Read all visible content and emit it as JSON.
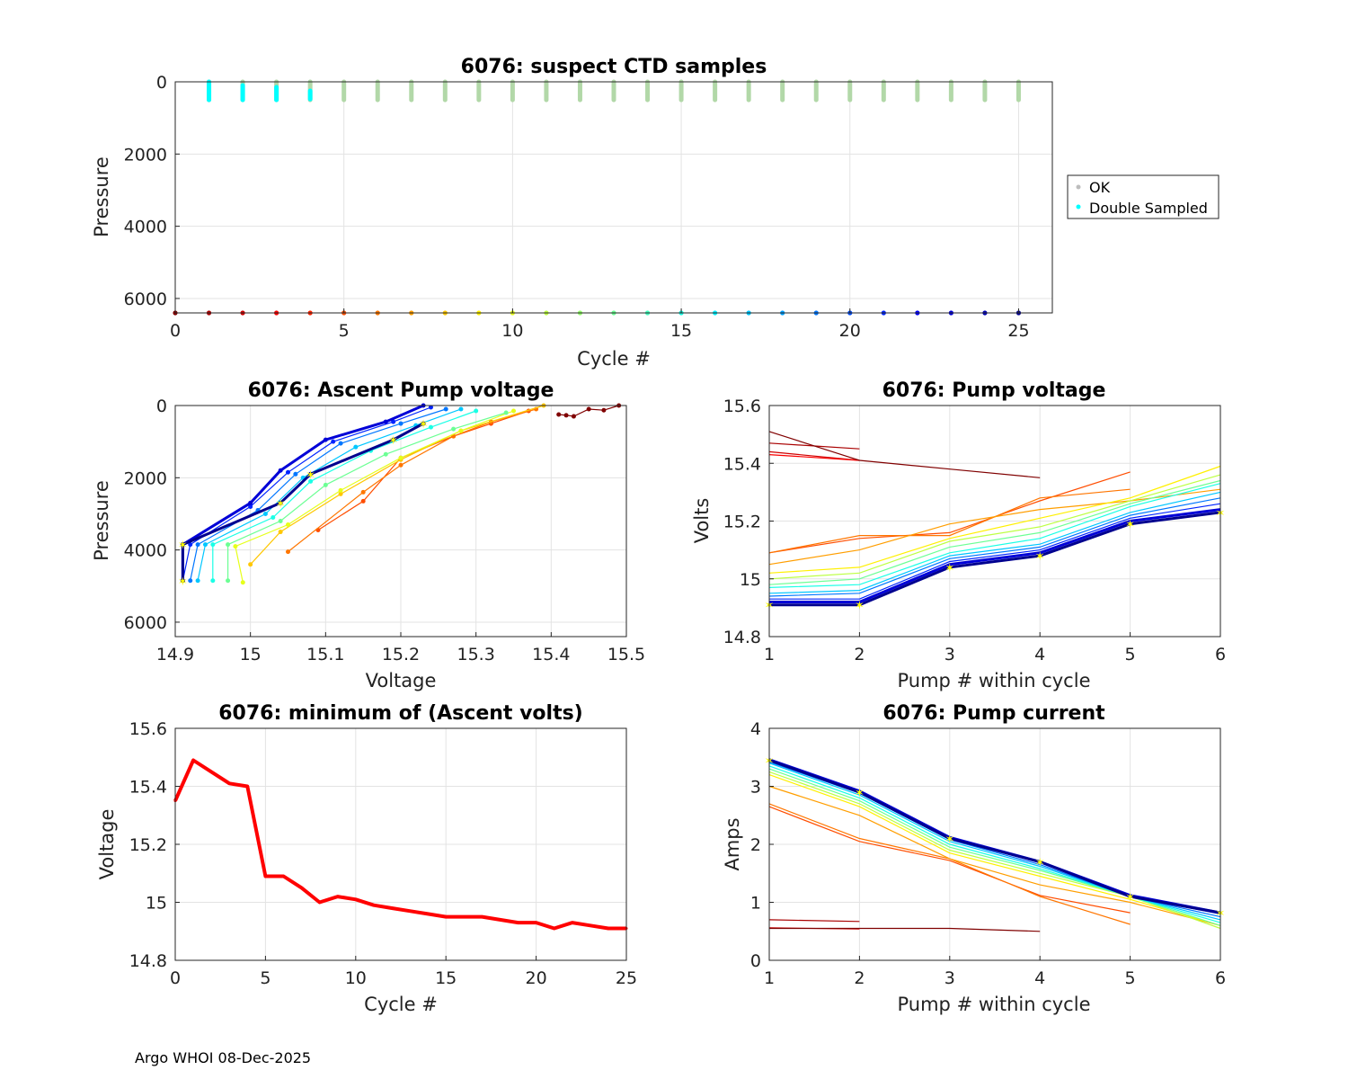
{
  "footer": "Argo WHOI 08-Dec-2025",
  "colors": {
    "cycle_colormap": [
      "#00008f",
      "#0000ff",
      "#0080ff",
      "#00ffff",
      "#80ff80",
      "#ffff00",
      "#ff8000",
      "#ff0000",
      "#800000"
    ],
    "ok": "#b2d8a8",
    "double_sampled": "#00ffff",
    "min_volts": "#ff0000",
    "marker": "#ffff00"
  },
  "chart_data": [
    {
      "id": "ctd",
      "type": "scatter",
      "title": "6076: suspect CTD samples",
      "xlabel": "Cycle #",
      "ylabel": "Pressure",
      "xlim": [
        0,
        26
      ],
      "ylim": [
        0,
        6400
      ],
      "y_reversed": true,
      "xticks": [
        "0",
        "5",
        "10",
        "15",
        "20",
        "25"
      ],
      "yticks": [
        "0",
        "2000",
        "4000",
        "6000"
      ],
      "legend": [
        "OK",
        "Double Sampled"
      ],
      "legend_position": "outside right",
      "ok_profile_cycles": [
        1,
        2,
        3,
        4,
        5,
        6,
        7,
        8,
        9,
        10,
        11,
        12,
        13,
        14,
        15,
        16,
        17,
        18,
        19,
        20,
        21,
        22,
        23,
        24,
        25
      ],
      "ok_profile_pressure_range": [
        0,
        500
      ],
      "double_sampled": [
        {
          "cycle": 1,
          "pressure_range": [
            0,
            500
          ]
        },
        {
          "cycle": 2,
          "pressure_range": [
            100,
            500
          ]
        },
        {
          "cycle": 3,
          "pressure_range": [
            150,
            500
          ]
        },
        {
          "cycle": 4,
          "pressure_range": [
            250,
            480
          ]
        }
      ],
      "cycle_markers_pressure": 6400,
      "cycle_markers": [
        0,
        1,
        2,
        3,
        4,
        5,
        6,
        7,
        8,
        9,
        10,
        11,
        12,
        13,
        14,
        15,
        16,
        17,
        18,
        19,
        20,
        21,
        22,
        23,
        24,
        25
      ]
    },
    {
      "id": "apv",
      "type": "line",
      "title": "6076: Ascent Pump voltage",
      "xlabel": "Voltage",
      "ylabel": "Pressure",
      "xlim": [
        14.9,
        15.5
      ],
      "ylim": [
        0,
        6400
      ],
      "y_reversed": true,
      "xticks": [
        "14.9",
        "15",
        "15.1",
        "15.2",
        "15.3",
        "15.4",
        "15.5"
      ],
      "yticks": [
        "0",
        "2000",
        "4000",
        "6000"
      ],
      "series": [
        {
          "cycle": 0,
          "voltage": [
            15.49,
            15.47,
            15.45,
            15.43,
            15.42,
            15.41
          ],
          "pressure": [
            0,
            130,
            100,
            300,
            270,
            250
          ]
        },
        {
          "cycle": 5,
          "voltage": [
            15.09,
            15.15,
            15.2,
            15.27,
            15.32,
            15.37
          ],
          "pressure": [
            3450,
            2650,
            1450,
            850,
            500,
            150
          ]
        },
        {
          "cycle": 6,
          "voltage": [
            15.05,
            15.15,
            15.2,
            15.27,
            15.32,
            15.38
          ],
          "pressure": [
            4050,
            2400,
            1650,
            850,
            450,
            100
          ]
        },
        {
          "cycle": 8,
          "voltage": [
            15.0,
            15.04,
            15.12,
            15.2,
            15.28,
            15.39
          ],
          "pressure": [
            4400,
            3500,
            2450,
            1500,
            700,
            0
          ]
        },
        {
          "cycle": 10,
          "voltage": [
            14.99,
            14.98,
            15.05,
            15.12,
            15.2,
            15.28,
            15.35
          ],
          "pressure": [
            4900,
            3900,
            3300,
            2350,
            1450,
            700,
            150
          ]
        },
        {
          "cycle": 13,
          "voltage": [
            14.97,
            14.97,
            15.04,
            15.1,
            15.18,
            15.27,
            15.34
          ],
          "pressure": [
            4850,
            3850,
            3200,
            2200,
            1350,
            650,
            200
          ]
        },
        {
          "cycle": 15,
          "voltage": [
            14.95,
            14.95,
            15.03,
            15.08,
            15.16,
            15.24,
            15.3
          ],
          "pressure": [
            4850,
            3850,
            3100,
            2100,
            1250,
            600,
            150
          ]
        },
        {
          "cycle": 17,
          "voltage": [
            14.93,
            14.94,
            15.02,
            15.07,
            15.14,
            15.22,
            15.28
          ],
          "pressure": [
            4850,
            3850,
            3000,
            2000,
            1150,
            550,
            100
          ]
        },
        {
          "cycle": 19,
          "voltage": [
            14.92,
            14.93,
            15.01,
            15.06,
            15.12,
            15.2,
            15.26
          ],
          "pressure": [
            4850,
            3850,
            2900,
            1900,
            1050,
            500,
            100
          ]
        },
        {
          "cycle": 21,
          "voltage": [
            14.91,
            14.92,
            15.0,
            15.05,
            15.11,
            15.19,
            15.24
          ],
          "pressure": [
            4850,
            3850,
            2800,
            1850,
            1000,
            450,
            50
          ]
        },
        {
          "cycle": 23,
          "voltage": [
            14.91,
            14.91,
            15.0,
            15.04,
            15.1,
            15.18,
            15.23
          ],
          "pressure": [
            4850,
            3850,
            2700,
            1800,
            950,
            450,
            0
          ]
        },
        {
          "cycle": 25,
          "voltage": [
            14.91,
            14.91,
            15.04,
            15.08,
            15.19,
            15.23
          ],
          "pressure": [
            4850,
            3850,
            2700,
            1900,
            950,
            500
          ]
        }
      ]
    },
    {
      "id": "pv",
      "type": "line",
      "title": "6076: Pump voltage",
      "xlabel": "Pump # within cycle",
      "ylabel": "Volts",
      "xlim": [
        1,
        6
      ],
      "ylim": [
        14.8,
        15.6
      ],
      "xticks": [
        "1",
        "2",
        "3",
        "4",
        "5",
        "6"
      ],
      "yticks": [
        "14.8",
        "15",
        "15.2",
        "15.4",
        "15.6"
      ],
      "series": [
        {
          "cycle": 1,
          "pump": [
            1,
            2
          ],
          "volts": [
            15.47,
            15.45
          ]
        },
        {
          "cycle": 2,
          "pump": [
            1,
            2
          ],
          "volts": [
            15.44,
            15.41
          ]
        },
        {
          "cycle": 3,
          "pump": [
            1,
            2
          ],
          "volts": [
            15.43,
            15.41
          ]
        },
        {
          "cycle": 0,
          "pump": [
            1,
            2,
            3,
            4
          ],
          "volts": [
            15.51,
            15.41,
            15.38,
            15.35
          ]
        },
        {
          "cycle": 5,
          "pump": [
            1,
            2,
            3,
            4,
            5
          ],
          "volts": [
            15.09,
            15.14,
            15.16,
            15.27,
            15.37
          ]
        },
        {
          "cycle": 6,
          "pump": [
            1,
            2,
            3,
            4,
            5
          ],
          "volts": [
            15.09,
            15.15,
            15.15,
            15.28,
            15.31
          ]
        },
        {
          "cycle": 7,
          "pump": [
            1,
            2,
            3,
            4,
            5,
            6
          ],
          "volts": [
            15.05,
            15.1,
            15.19,
            15.24,
            15.27,
            15.31
          ]
        },
        {
          "cycle": 9,
          "pump": [
            1,
            2,
            3,
            4,
            5,
            6
          ],
          "volts": [
            15.02,
            15.04,
            15.14,
            15.21,
            15.28,
            15.39
          ]
        },
        {
          "cycle": 11,
          "pump": [
            1,
            2,
            3,
            4,
            5,
            6
          ],
          "volts": [
            15.0,
            15.02,
            15.13,
            15.18,
            15.27,
            15.36
          ]
        },
        {
          "cycle": 13,
          "pump": [
            1,
            2,
            3,
            4,
            5,
            6
          ],
          "volts": [
            14.98,
            15.0,
            15.11,
            15.16,
            15.26,
            15.34
          ]
        },
        {
          "cycle": 15,
          "pump": [
            1,
            2,
            3,
            4,
            5,
            6
          ],
          "volts": [
            14.97,
            14.98,
            15.09,
            15.14,
            15.25,
            15.33
          ]
        },
        {
          "cycle": 17,
          "pump": [
            1,
            2,
            3,
            4,
            5,
            6
          ],
          "volts": [
            14.95,
            14.96,
            15.08,
            15.12,
            15.23,
            15.3
          ]
        },
        {
          "cycle": 19,
          "pump": [
            1,
            2,
            3,
            4,
            5,
            6
          ],
          "volts": [
            14.94,
            14.95,
            15.07,
            15.11,
            15.22,
            15.28
          ]
        },
        {
          "cycle": 21,
          "pump": [
            1,
            2,
            3,
            4,
            5,
            6
          ],
          "volts": [
            14.93,
            14.93,
            15.06,
            15.1,
            15.21,
            15.26
          ]
        },
        {
          "cycle": 23,
          "pump": [
            1,
            2,
            3,
            4,
            5,
            6
          ],
          "volts": [
            14.92,
            14.92,
            15.05,
            15.09,
            15.2,
            15.24
          ]
        },
        {
          "cycle": 25,
          "pump": [
            1,
            2,
            3,
            4,
            5,
            6
          ],
          "volts": [
            14.91,
            14.91,
            15.04,
            15.08,
            15.19,
            15.23
          ]
        }
      ]
    },
    {
      "id": "minv",
      "type": "line",
      "title": "6076: minimum of (Ascent volts)",
      "xlabel": "Cycle #",
      "ylabel": "Voltage",
      "xlim": [
        0,
        25
      ],
      "ylim": [
        14.8,
        15.6
      ],
      "xticks": [
        "0",
        "5",
        "10",
        "15",
        "20",
        "25"
      ],
      "yticks": [
        "14.8",
        "15",
        "15.2",
        "15.4",
        "15.6"
      ],
      "x": [
        0,
        1,
        2,
        3,
        4,
        5,
        6,
        7,
        8,
        9,
        10,
        11,
        12,
        13,
        14,
        15,
        16,
        17,
        18,
        19,
        20,
        21,
        22,
        23,
        24,
        25
      ],
      "values": [
        15.35,
        15.49,
        15.45,
        15.41,
        15.4,
        15.09,
        15.09,
        15.05,
        15.0,
        15.02,
        15.01,
        14.99,
        14.98,
        14.97,
        14.96,
        14.95,
        14.95,
        14.95,
        14.94,
        14.93,
        14.93,
        14.91,
        14.93,
        14.92,
        14.91,
        14.91
      ]
    },
    {
      "id": "pc",
      "type": "line",
      "title": "6076: Pump current",
      "xlabel": "Pump # within cycle",
      "ylabel": "Amps",
      "xlim": [
        1,
        6
      ],
      "ylim": [
        0,
        4
      ],
      "xticks": [
        "1",
        "2",
        "3",
        "4",
        "5",
        "6"
      ],
      "yticks": [
        "0",
        "1",
        "2",
        "3",
        "4"
      ],
      "series": [
        {
          "cycle": 1,
          "pump": [
            1,
            2
          ],
          "amps": [
            0.7,
            0.67
          ]
        },
        {
          "cycle": 2,
          "pump": [
            1,
            2
          ],
          "amps": [
            0.56,
            0.54
          ]
        },
        {
          "cycle": 0,
          "pump": [
            1,
            2,
            3,
            4
          ],
          "amps": [
            0.55,
            0.55,
            0.55,
            0.5
          ]
        },
        {
          "cycle": 5,
          "pump": [
            1,
            2,
            3,
            4,
            5
          ],
          "amps": [
            2.65,
            2.05,
            1.72,
            1.12,
            0.82
          ]
        },
        {
          "cycle": 6,
          "pump": [
            1,
            2,
            3,
            4,
            5
          ],
          "amps": [
            2.7,
            2.1,
            1.75,
            1.1,
            0.62
          ]
        },
        {
          "cycle": 7,
          "pump": [
            1,
            2,
            3,
            4,
            5,
            6
          ],
          "amps": [
            3.0,
            2.5,
            1.75,
            1.3,
            1.0,
            0.6
          ]
        },
        {
          "cycle": 9,
          "pump": [
            1,
            2,
            3,
            4,
            5,
            6
          ],
          "amps": [
            3.2,
            2.65,
            1.85,
            1.45,
            1.05,
            0.6
          ]
        },
        {
          "cycle": 11,
          "pump": [
            1,
            2,
            3,
            4,
            5,
            6
          ],
          "amps": [
            3.25,
            2.7,
            1.9,
            1.5,
            1.1,
            0.55
          ]
        },
        {
          "cycle": 13,
          "pump": [
            1,
            2,
            3,
            4,
            5,
            6
          ],
          "amps": [
            3.3,
            2.75,
            1.95,
            1.55,
            1.1,
            0.6
          ]
        },
        {
          "cycle": 15,
          "pump": [
            1,
            2,
            3,
            4,
            5,
            6
          ],
          "amps": [
            3.35,
            2.8,
            2.0,
            1.58,
            1.1,
            0.65
          ]
        },
        {
          "cycle": 17,
          "pump": [
            1,
            2,
            3,
            4,
            5,
            6
          ],
          "amps": [
            3.4,
            2.85,
            2.05,
            1.62,
            1.1,
            0.7
          ]
        },
        {
          "cycle": 19,
          "pump": [
            1,
            2,
            3,
            4,
            5,
            6
          ],
          "amps": [
            3.42,
            2.88,
            2.08,
            1.65,
            1.1,
            0.75
          ]
        },
        {
          "cycle": 21,
          "pump": [
            1,
            2,
            3,
            4,
            5,
            6
          ],
          "amps": [
            3.45,
            2.9,
            2.1,
            1.68,
            1.1,
            0.8
          ]
        },
        {
          "cycle": 23,
          "pump": [
            1,
            2,
            3,
            4,
            5,
            6
          ],
          "amps": [
            3.46,
            2.92,
            2.12,
            1.7,
            1.12,
            0.82
          ]
        },
        {
          "cycle": 25,
          "pump": [
            1,
            2,
            3,
            4,
            5,
            6
          ],
          "amps": [
            3.45,
            2.9,
            2.1,
            1.7,
            1.1,
            0.82
          ]
        }
      ]
    }
  ]
}
